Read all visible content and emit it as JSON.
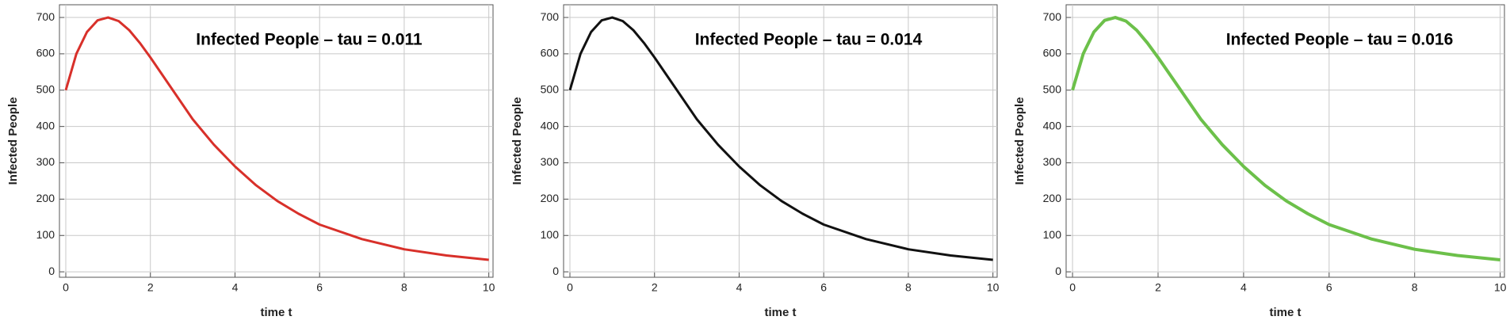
{
  "chart_data": [
    {
      "type": "line",
      "title": "Infected People – tau = 0.011",
      "xlabel": "time t",
      "ylabel": "Infected People",
      "x": [
        0,
        0.25,
        0.5,
        0.75,
        1,
        1.25,
        1.5,
        1.75,
        2,
        2.5,
        3,
        3.5,
        4,
        4.5,
        5,
        5.5,
        6,
        7,
        8,
        9,
        10
      ],
      "series": [
        {
          "color": "#d8302a",
          "values": [
            500,
            600,
            660,
            692,
            700,
            690,
            665,
            630,
            590,
            505,
            420,
            350,
            290,
            238,
            195,
            160,
            130,
            90,
            62,
            45,
            33
          ]
        }
      ],
      "xlim": [
        -0.15,
        10.1
      ],
      "ylim": [
        -15,
        735
      ],
      "xticks": [
        0,
        2,
        4,
        6,
        8,
        10
      ],
      "yticks": [
        0,
        100,
        200,
        300,
        400,
        500,
        600,
        700
      ],
      "grid": true
    },
    {
      "type": "line",
      "title": "Infected People – tau = 0.014",
      "xlabel": "time t",
      "ylabel": "Infected People",
      "x": [
        0,
        0.25,
        0.5,
        0.75,
        1,
        1.25,
        1.5,
        1.75,
        2,
        2.5,
        3,
        3.5,
        4,
        4.5,
        5,
        5.5,
        6,
        7,
        8,
        9,
        10
      ],
      "series": [
        {
          "color": "#111111",
          "values": [
            500,
            600,
            660,
            692,
            700,
            690,
            665,
            630,
            590,
            505,
            420,
            350,
            290,
            238,
            195,
            160,
            130,
            90,
            62,
            45,
            33
          ]
        }
      ],
      "xlim": [
        -0.15,
        10.1
      ],
      "ylim": [
        -15,
        735
      ],
      "xticks": [
        0,
        2,
        4,
        6,
        8,
        10
      ],
      "yticks": [
        0,
        100,
        200,
        300,
        400,
        500,
        600,
        700
      ],
      "grid": true
    },
    {
      "type": "line",
      "title": "Infected People – tau = 0.016",
      "xlabel": "time t",
      "ylabel": "Infected People",
      "x": [
        0,
        0.25,
        0.5,
        0.75,
        1,
        1.25,
        1.5,
        1.75,
        2,
        2.5,
        3,
        3.5,
        4,
        4.5,
        5,
        5.5,
        6,
        7,
        8,
        9,
        10
      ],
      "series": [
        {
          "color": "#6cc04a",
          "values": [
            500,
            600,
            660,
            692,
            700,
            690,
            665,
            630,
            590,
            505,
            420,
            350,
            290,
            238,
            195,
            160,
            130,
            90,
            62,
            45,
            33
          ]
        }
      ],
      "xlim": [
        -0.15,
        10.1
      ],
      "ylim": [
        -15,
        735
      ],
      "xticks": [
        0,
        2,
        4,
        6,
        8,
        10
      ],
      "yticks": [
        0,
        100,
        200,
        300,
        400,
        500,
        600,
        700
      ],
      "grid": true
    }
  ]
}
